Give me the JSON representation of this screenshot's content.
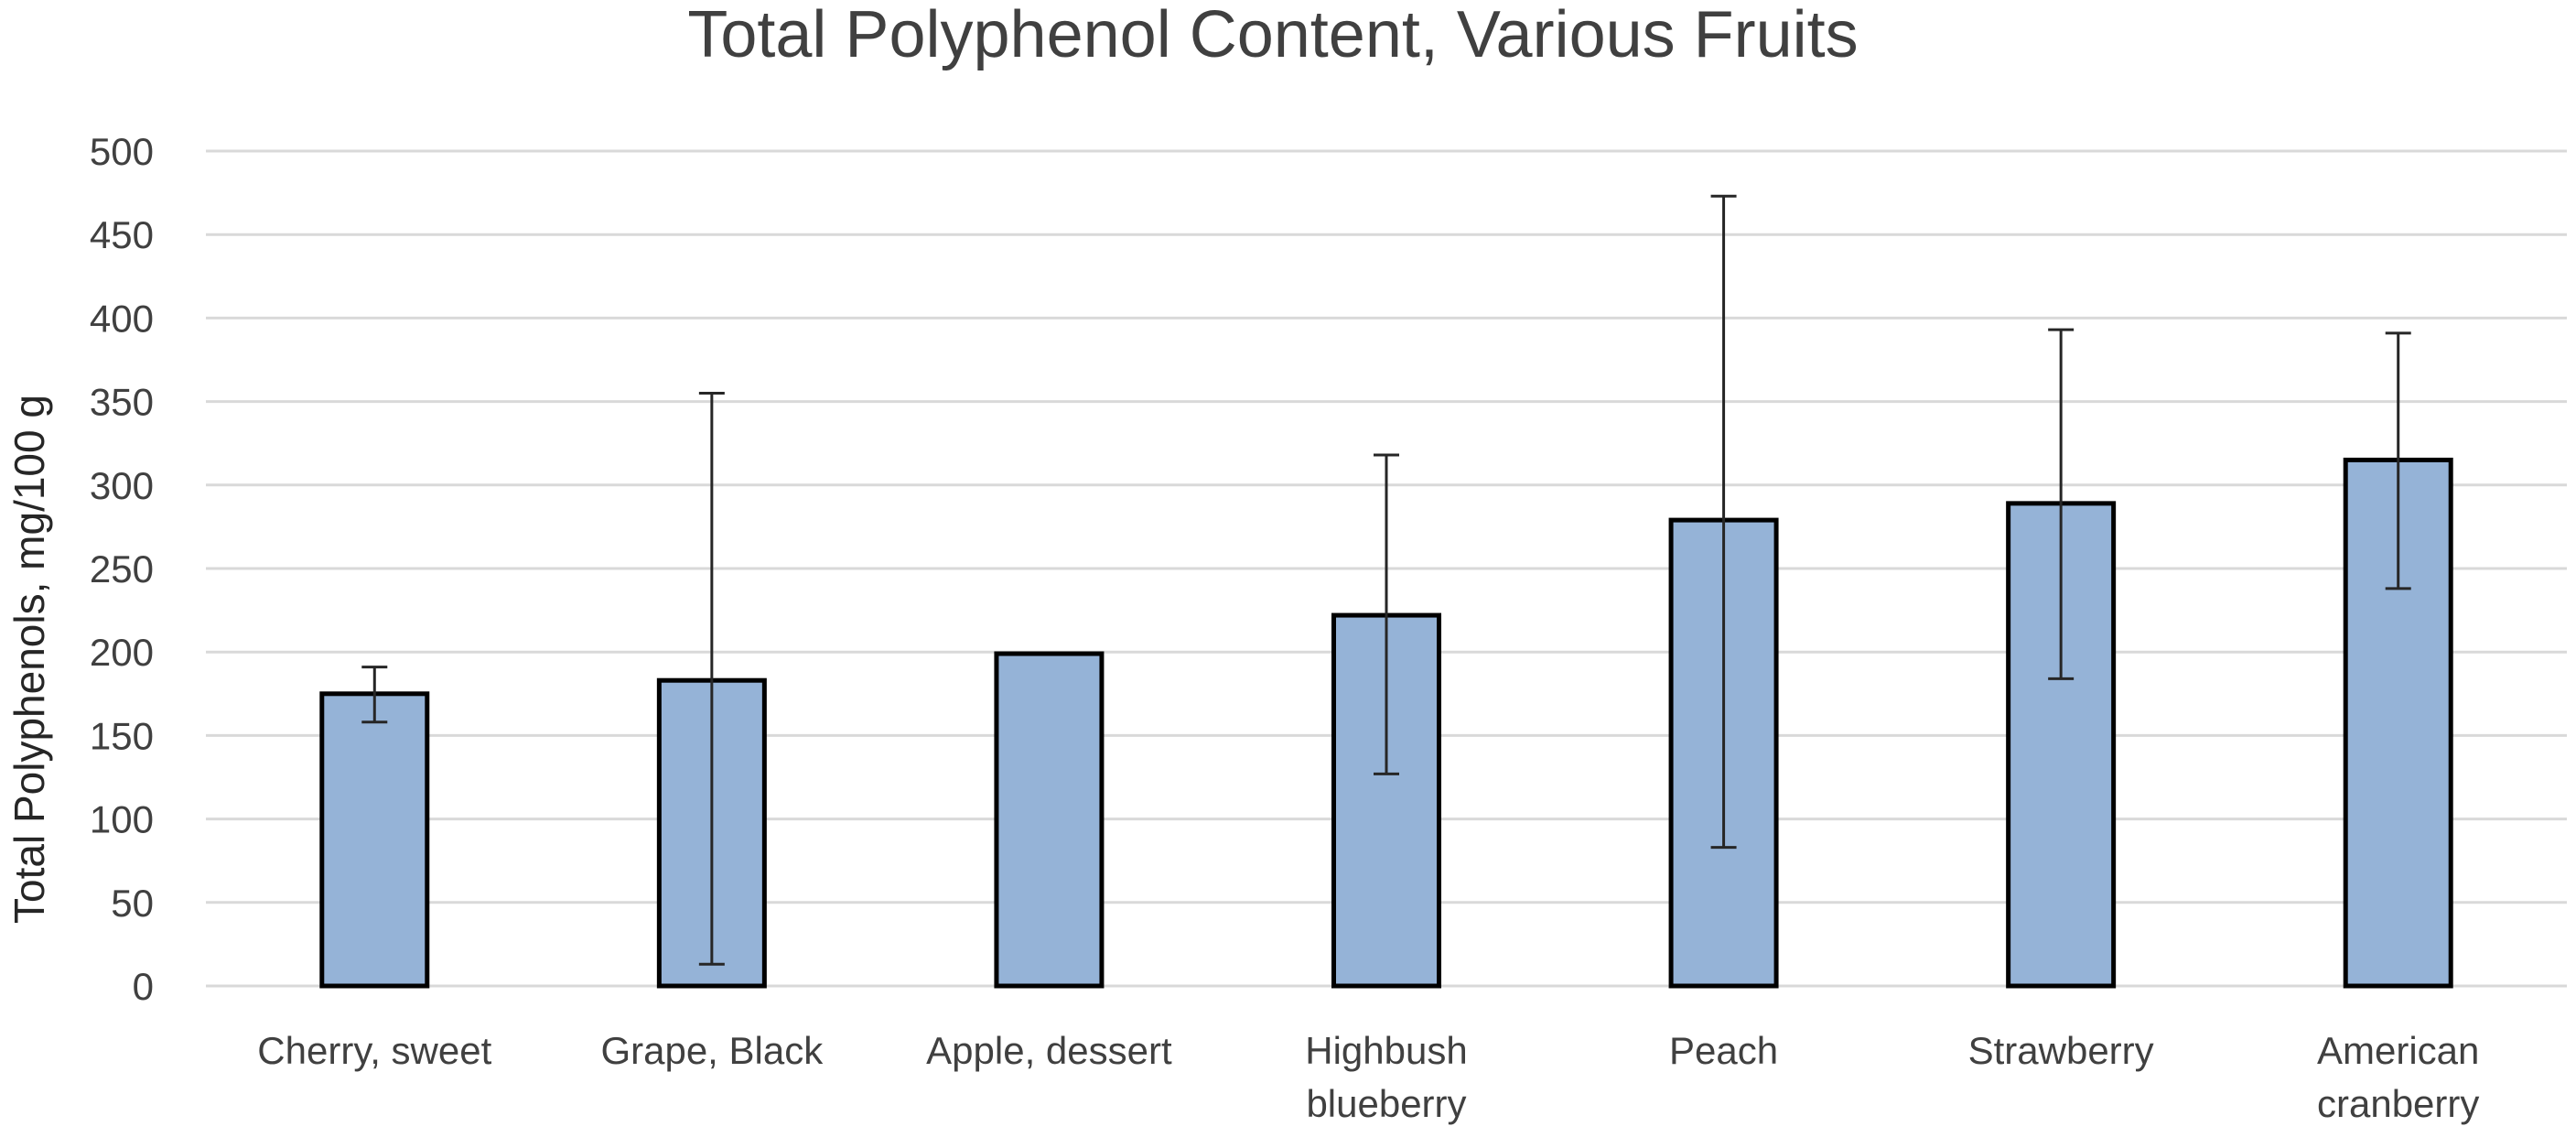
{
  "chart_data": {
    "type": "bar",
    "title": "Total Polyphenol Content, Various Fruits",
    "xlabel": "",
    "ylabel": "Total Polyphenols, mg/100 g",
    "ylim": [
      0,
      500
    ],
    "yticks": [
      0,
      50,
      100,
      150,
      200,
      250,
      300,
      350,
      400,
      450,
      500
    ],
    "grid": true,
    "legend": "none",
    "categories": [
      [
        "Cherry, sweet"
      ],
      [
        "Grape, Black"
      ],
      [
        "Apple, dessert"
      ],
      [
        "Highbush",
        "blueberry"
      ],
      [
        "Peach"
      ],
      [
        "Strawberry"
      ],
      [
        "American",
        "cranberry"
      ]
    ],
    "values": [
      175,
      183,
      199,
      222,
      279,
      289,
      315
    ],
    "error_low": [
      158,
      13,
      199,
      127,
      83,
      184,
      238
    ],
    "error_high": [
      191,
      355,
      199,
      318,
      473,
      393,
      391
    ],
    "bar_color": "#95b3d7"
  }
}
